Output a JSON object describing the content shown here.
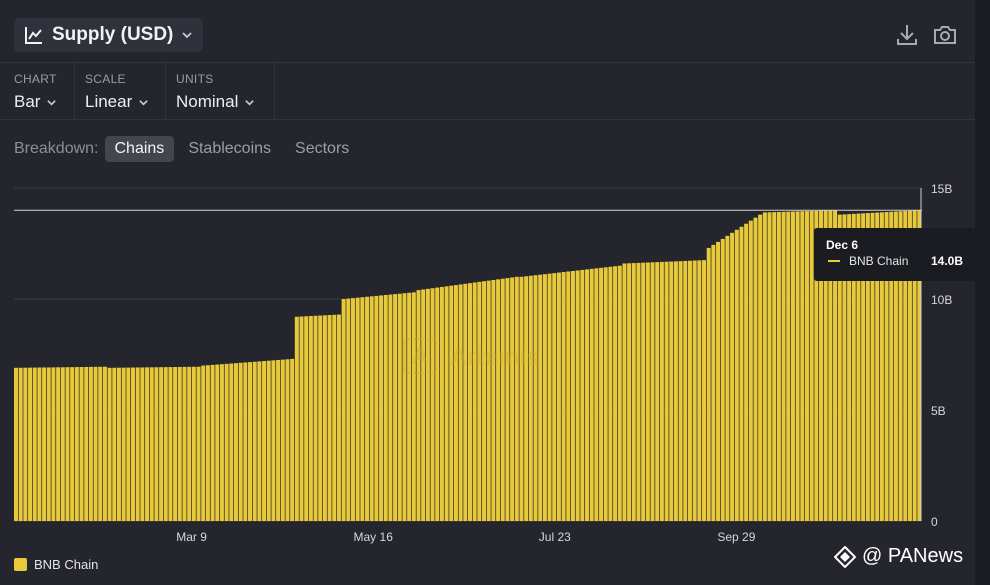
{
  "header": {
    "metric_label": "Supply (USD)",
    "icons": [
      "line-chart-icon",
      "chevron-down-icon",
      "download-icon",
      "camera-icon"
    ]
  },
  "controls": [
    {
      "caption": "CHART",
      "value": "Bar"
    },
    {
      "caption": "SCALE",
      "value": "Linear"
    },
    {
      "caption": "UNITS",
      "value": "Nominal"
    }
  ],
  "breakdown": {
    "label": "Breakdown:",
    "tabs": [
      "Chains",
      "Stablecoins",
      "Sectors"
    ],
    "active": "Chains"
  },
  "watermark": "Artemis",
  "branding": "@ PANews",
  "colors": {
    "bar": "#e8c93a",
    "background": "#25262d",
    "grid": "#3a3b42"
  },
  "chart_data": {
    "type": "bar",
    "title": "Supply (USD)",
    "series": [
      {
        "name": "BNB Chain",
        "color": "#e8c93a"
      }
    ],
    "x_ticks": [
      "Mar 9",
      "May 16",
      "Jul 23",
      "Sep 29"
    ],
    "y_ticks": [
      "0",
      "5B",
      "10B",
      "15B"
    ],
    "ylim": [
      0,
      15
    ],
    "y_unit": "B",
    "segments": [
      {
        "n": 20,
        "from": 6.9,
        "to": 6.95
      },
      {
        "n": 20,
        "from": 6.9,
        "to": 6.95
      },
      {
        "n": 20,
        "from": 7.0,
        "to": 7.3
      },
      {
        "n": 10,
        "from": 9.2,
        "to": 9.3
      },
      {
        "n": 16,
        "from": 10.0,
        "to": 10.3
      },
      {
        "n": 22,
        "from": 10.4,
        "to": 11.0
      },
      {
        "n": 22,
        "from": 11.0,
        "to": 11.5
      },
      {
        "n": 18,
        "from": 11.6,
        "to": 11.75
      },
      {
        "n": 12,
        "from": 12.3,
        "to": 13.8
      },
      {
        "n": 16,
        "from": 13.9,
        "to": 14.0
      },
      {
        "n": 18,
        "from": 13.8,
        "to": 14.0
      }
    ],
    "crosshair": {
      "date": "Dec 6",
      "series": "BNB Chain",
      "value": 14.0,
      "value_label": "14.0B"
    }
  }
}
